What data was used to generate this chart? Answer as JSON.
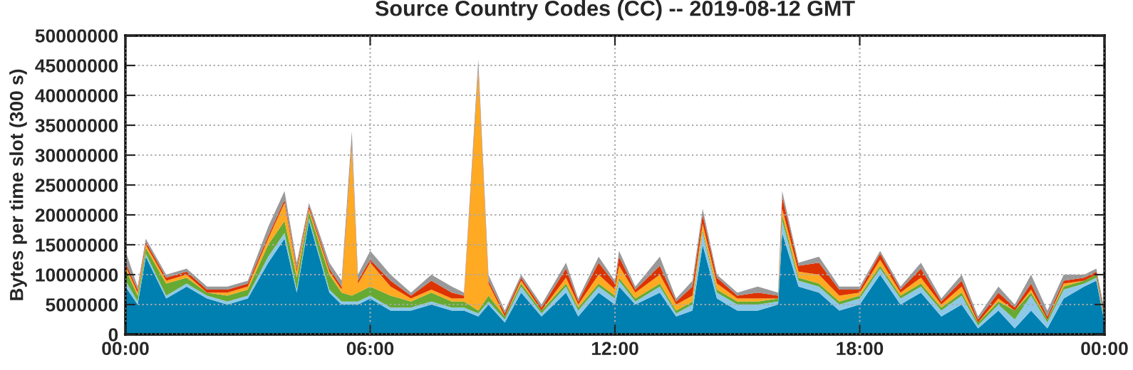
{
  "chart_data": {
    "type": "area",
    "stacked": true,
    "title": "Source Country Codes (CC) -- 2019-08-12 GMT",
    "ylabel": "Bytes per time slot (300 s)",
    "x": [
      0.0,
      0.3,
      0.5,
      1.0,
      1.5,
      2.0,
      2.5,
      3.0,
      3.5,
      3.9,
      4.2,
      4.5,
      5.0,
      5.3,
      5.55,
      5.7,
      6.0,
      6.5,
      7.0,
      7.5,
      8.0,
      8.3,
      8.65,
      8.9,
      9.3,
      9.7,
      10.2,
      10.8,
      11.1,
      11.6,
      12.0,
      12.1,
      12.5,
      13.1,
      13.5,
      13.9,
      14.15,
      14.5,
      15.0,
      15.5,
      16.0,
      16.1,
      16.5,
      17.0,
      17.5,
      18.0,
      18.5,
      19.0,
      19.5,
      20.0,
      20.5,
      20.9,
      21.4,
      21.8,
      22.2,
      22.6,
      23.0,
      23.5,
      23.8,
      24.0
    ],
    "series": [
      {
        "color": "#0080b0",
        "values": [
          8000000,
          5000000,
          13000000,
          6000000,
          8000000,
          6000000,
          5000000,
          6000000,
          12000000,
          16000000,
          7000000,
          19000000,
          7000000,
          5000000,
          5000000,
          5000000,
          6000000,
          4000000,
          4000000,
          5000000,
          4000000,
          4000000,
          3000000,
          5000000,
          2000000,
          7000000,
          3000000,
          7000000,
          3000000,
          7000000,
          5000000,
          8000000,
          5000000,
          7000000,
          3000000,
          4000000,
          15000000,
          6000000,
          4000000,
          4000000,
          5000000,
          17000000,
          8000000,
          7000000,
          4000000,
          5000000,
          10000000,
          5000000,
          7000000,
          3000000,
          5000000,
          1000000,
          4000000,
          1000000,
          4000000,
          1000000,
          6000000,
          8000000,
          9000000,
          2000000
        ]
      },
      {
        "color": "#8ec8e8",
        "values": [
          1000000,
          500000,
          500000,
          500000,
          500000,
          500000,
          500000,
          500000,
          1000000,
          1000000,
          500000,
          500000,
          500000,
          500000,
          500000,
          500000,
          500000,
          500000,
          500000,
          500000,
          500000,
          500000,
          500000,
          500000,
          500000,
          1000000,
          500000,
          1000000,
          1000000,
          1000000,
          1000000,
          1000000,
          500000,
          1000000,
          500000,
          1000000,
          2000000,
          1000000,
          1000000,
          1000000,
          500000,
          2000000,
          1000000,
          1000000,
          1000000,
          1000000,
          1000000,
          1000000,
          1000000,
          1000000,
          1500000,
          500000,
          1000000,
          1500000,
          2500000,
          1000000,
          1500000,
          500000,
          500000,
          500000
        ]
      },
      {
        "color": "#66aa33",
        "values": [
          2000000,
          1000000,
          1000000,
          2000000,
          1000000,
          500000,
          1000000,
          1000000,
          2000000,
          2000000,
          2000000,
          1000000,
          2500000,
          1500000,
          1000000,
          1500000,
          1500000,
          2000000,
          1000000,
          1500000,
          1000000,
          1000000,
          500000,
          1000000,
          500000,
          500000,
          500000,
          500000,
          500000,
          500000,
          500000,
          500000,
          500000,
          500000,
          500000,
          500000,
          500000,
          500000,
          500000,
          500000,
          500000,
          1000000,
          500000,
          500000,
          500000,
          500000,
          500000,
          500000,
          500000,
          500000,
          500000,
          500000,
          500000,
          1500000,
          500000,
          500000,
          500000,
          500000,
          500000,
          500000
        ]
      },
      {
        "color": "#ffaa22",
        "values": [
          500000,
          500000,
          500000,
          500000,
          500000,
          0,
          500000,
          500000,
          1000000,
          3000000,
          1000000,
          500000,
          500000,
          500000,
          25000000,
          1500000,
          4000000,
          1500000,
          500000,
          500000,
          500000,
          500000,
          40000000,
          2000000,
          0,
          500000,
          0,
          1000000,
          500000,
          1500000,
          1000000,
          2000000,
          1000000,
          1500000,
          1000000,
          1000000,
          1000000,
          1000000,
          500000,
          500000,
          0,
          1000000,
          1000000,
          1500000,
          1000000,
          500000,
          1000000,
          500000,
          1000000,
          500000,
          1000000,
          0,
          500000,
          0,
          500000,
          0,
          500000,
          0,
          0,
          0
        ]
      },
      {
        "color": "#dd3300",
        "values": [
          500000,
          500000,
          500000,
          500000,
          500000,
          500000,
          500000,
          500000,
          500000,
          500000,
          500000,
          500000,
          500000,
          500000,
          500000,
          500000,
          500000,
          1000000,
          500000,
          1500000,
          1000000,
          500000,
          500000,
          500000,
          500000,
          500000,
          500000,
          1500000,
          500000,
          2000000,
          1000000,
          1500000,
          500000,
          1500000,
          500000,
          1500000,
          1500000,
          1000000,
          500000,
          1000000,
          500000,
          2000000,
          1000000,
          2000000,
          1000000,
          500000,
          1000000,
          500000,
          1500000,
          500000,
          1000000,
          500000,
          1000000,
          500000,
          1000000,
          500000,
          500000,
          500000,
          500000,
          500000
        ]
      },
      {
        "color": "#999999",
        "values": [
          2000000,
          500000,
          500000,
          500000,
          500000,
          500000,
          500000,
          500000,
          1500000,
          1500000,
          1000000,
          500000,
          1000000,
          1000000,
          2000000,
          1000000,
          1500000,
          1000000,
          500000,
          1000000,
          1000000,
          500000,
          1500000,
          1000000,
          500000,
          500000,
          500000,
          1000000,
          500000,
          1000000,
          500000,
          1000000,
          500000,
          1500000,
          500000,
          1000000,
          1000000,
          500000,
          500000,
          1000000,
          500000,
          1000000,
          500000,
          1000000,
          500000,
          500000,
          500000,
          500000,
          1000000,
          500000,
          1000000,
          500000,
          1000000,
          500000,
          1500000,
          1000000,
          1000000,
          500000,
          500000,
          500000
        ]
      }
    ],
    "xlim": [
      0,
      24
    ],
    "xticks": [
      {
        "value": 0,
        "label": "00:00"
      },
      {
        "value": 6,
        "label": "06:00"
      },
      {
        "value": 12,
        "label": "12:00"
      },
      {
        "value": 18,
        "label": "18:00"
      },
      {
        "value": 24,
        "label": "00:00"
      }
    ],
    "ylim": [
      0,
      50000000
    ],
    "yticks": [
      0,
      5000000,
      10000000,
      15000000,
      20000000,
      25000000,
      30000000,
      35000000,
      40000000,
      45000000,
      50000000
    ],
    "grid": true,
    "line_style": "dotted"
  }
}
